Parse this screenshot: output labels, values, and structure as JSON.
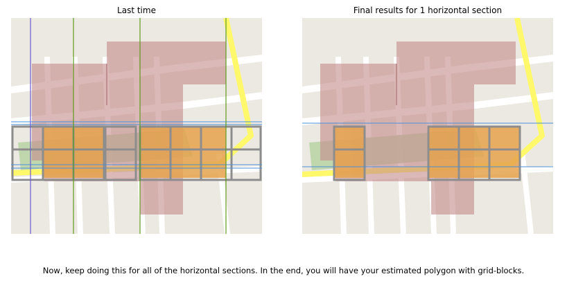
{
  "panels": [
    {
      "title": "Last time"
    },
    {
      "title": "Final results for 1 horizontal section"
    }
  ],
  "caption": "Now, keep doing this for all of the horizontal sections. In the end, you will have your estimated polygon with grid-blocks.",
  "colors": {
    "map_background": "#ece9e2",
    "road": "#ffffff",
    "highway": "#fff86a",
    "polygon_fill": "#c48a8a",
    "green_area": "#b9d4a4",
    "selected_block": "#e6a34e",
    "grid_border": "#8d8d8d",
    "horizontal_line": "#4a8fd8",
    "vertical_line_left": "#6a5ad0",
    "vertical_line": "#5e9a1c"
  }
}
